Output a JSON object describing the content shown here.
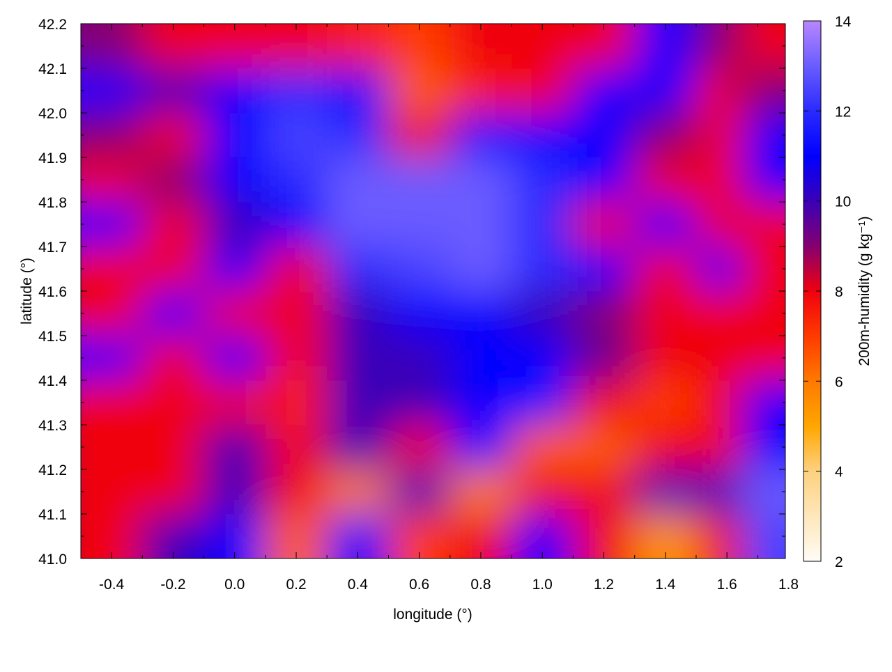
{
  "chart_data": {
    "type": "heatmap",
    "xlabel": "longitude (°)",
    "ylabel": "latitude (°)",
    "colorbar_label": "200m-humidity (g kg⁻¹)",
    "xlim": [
      -0.5,
      1.79
    ],
    "ylim": [
      41.0,
      42.2
    ],
    "x_ticks": [
      "-0.4",
      "-0.2",
      "0.0",
      "0.2",
      "0.4",
      "0.6",
      "0.8",
      "1.0",
      "1.2",
      "1.4",
      "1.6",
      "1.8"
    ],
    "y_ticks": [
      "41.0",
      "41.1",
      "41.2",
      "41.3",
      "41.4",
      "41.5",
      "41.6",
      "41.7",
      "41.8",
      "41.9",
      "42.0",
      "42.1",
      "42.2"
    ],
    "colorbar_range": [
      2,
      14
    ],
    "colorbar_ticks": [
      "2",
      "4",
      "6",
      "8",
      "10",
      "12",
      "14"
    ],
    "palette": [
      {
        "v": 2,
        "c": "#fffcf6"
      },
      {
        "v": 4,
        "c": "#fdd17f"
      },
      {
        "v": 5,
        "c": "#ffa600"
      },
      {
        "v": 6,
        "c": "#ff7a00"
      },
      {
        "v": 7,
        "c": "#ff3a00"
      },
      {
        "v": 8,
        "c": "#f00010"
      },
      {
        "v": 9,
        "c": "#850070"
      },
      {
        "v": 10,
        "c": "#3a00b8"
      },
      {
        "v": 11,
        "c": "#0000ff"
      },
      {
        "v": 12,
        "c": "#2a2aff"
      },
      {
        "v": 13,
        "c": "#6a5cff"
      },
      {
        "v": 14,
        "c": "#b886ff"
      }
    ],
    "x": [
      -0.4,
      -0.2,
      0.0,
      0.2,
      0.4,
      0.6,
      0.8,
      1.0,
      1.2,
      1.4,
      1.6,
      1.75
    ],
    "y": [
      42.15,
      42.05,
      41.95,
      41.85,
      41.75,
      41.65,
      41.55,
      41.45,
      41.35,
      41.25,
      41.15,
      41.05
    ],
    "z": [
      [
        9,
        8,
        8,
        8,
        7.5,
        7,
        8,
        8,
        8,
        11,
        9,
        8
      ],
      [
        11,
        10,
        11,
        12,
        11,
        6.5,
        7.5,
        8,
        11,
        11,
        8,
        9
      ],
      [
        9,
        8,
        11,
        12.5,
        12,
        8,
        11,
        11,
        11,
        9,
        8,
        11
      ],
      [
        8,
        9,
        11,
        12,
        13,
        13,
        13,
        12,
        11,
        8,
        8,
        11
      ],
      [
        11,
        8,
        10,
        11,
        13,
        13,
        13,
        12,
        8,
        11,
        8,
        8
      ],
      [
        8,
        8,
        11,
        8,
        12,
        12.5,
        13,
        12,
        11,
        8,
        11,
        8
      ],
      [
        8,
        11,
        8,
        8,
        10,
        11,
        11,
        10,
        9,
        8,
        8,
        8
      ],
      [
        11,
        8,
        11,
        8,
        10,
        10,
        11,
        11,
        9.5,
        8,
        8,
        8
      ],
      [
        8,
        8,
        8,
        7.5,
        10,
        10,
        11,
        11.5,
        8,
        7,
        8,
        11
      ],
      [
        8,
        8,
        10,
        8,
        10,
        8,
        11,
        6.5,
        6.5,
        8,
        8,
        11
      ],
      [
        8,
        8,
        10,
        8,
        6,
        10,
        6,
        8,
        8,
        10,
        10,
        13
      ],
      [
        8,
        10,
        11,
        6.5,
        11,
        7,
        8,
        11,
        8,
        5.5,
        8,
        12.5
      ]
    ],
    "grid": false,
    "colorbar_position": "right"
  }
}
